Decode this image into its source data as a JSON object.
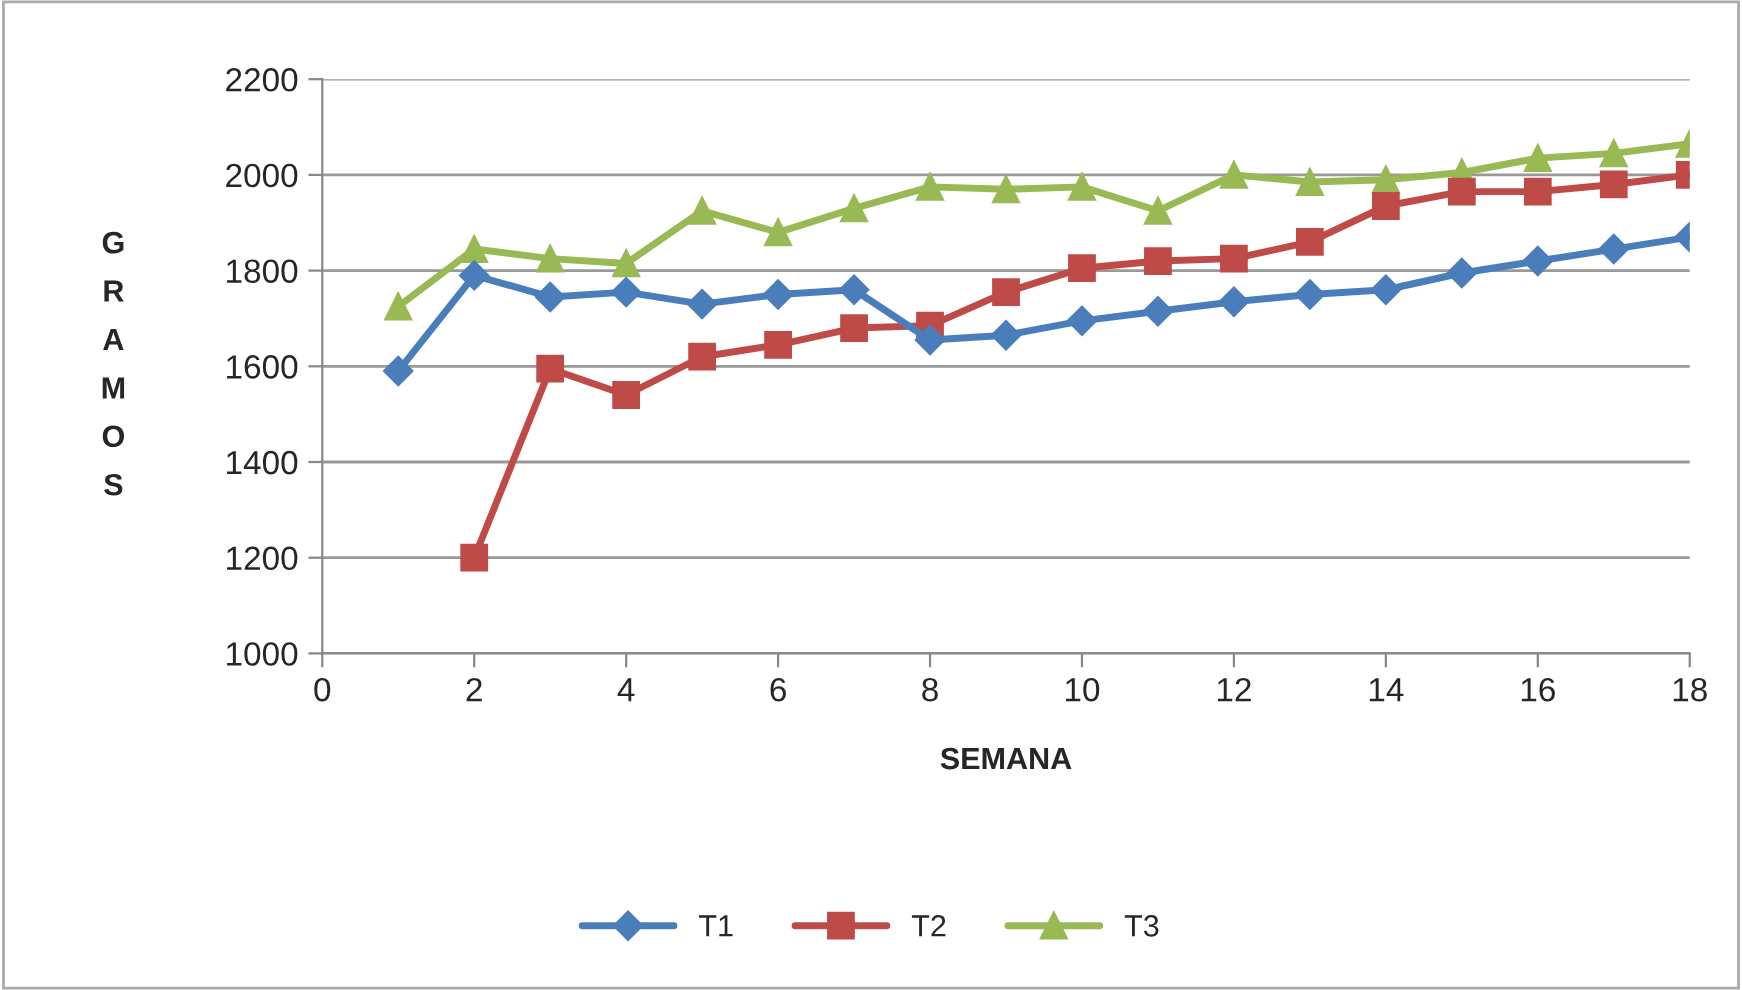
{
  "chart_data": {
    "type": "line",
    "xlabel": "SEMANA",
    "ylabel": "GRAMOS",
    "x": [
      1,
      2,
      3,
      4,
      5,
      6,
      7,
      8,
      9,
      10,
      11,
      12,
      13,
      14,
      15,
      16,
      17,
      18
    ],
    "series": [
      {
        "name": "T1",
        "color": "#4a7ebb",
        "marker": "diamond",
        "values": [
          1590,
          1790,
          1745,
          1755,
          1730,
          1750,
          1760,
          1655,
          1665,
          1695,
          1715,
          1735,
          1750,
          1760,
          1795,
          1820,
          1845,
          1870
        ]
      },
      {
        "name": "T2",
        "color": "#be4b48",
        "marker": "square",
        "values": [
          null,
          1200,
          1595,
          1540,
          1620,
          1645,
          1680,
          1685,
          1755,
          1805,
          1820,
          1825,
          1860,
          1935,
          1965,
          1965,
          1980,
          2000
        ]
      },
      {
        "name": "T3",
        "color": "#98b954",
        "marker": "triangle",
        "values": [
          1725,
          1845,
          1825,
          1815,
          1925,
          1880,
          1930,
          1975,
          1970,
          1975,
          1925,
          2000,
          1985,
          1990,
          2005,
          2035,
          2045,
          2065
        ]
      }
    ],
    "xlim": [
      0,
      18
    ],
    "xticks": [
      0,
      2,
      4,
      6,
      8,
      10,
      12,
      14,
      16,
      18
    ],
    "ylim": [
      1000,
      2200
    ],
    "yticks": [
      1000,
      1200,
      1400,
      1600,
      1800,
      2000,
      2200
    ],
    "grid": "y",
    "legend": "bottom",
    "line_style": "solid"
  }
}
